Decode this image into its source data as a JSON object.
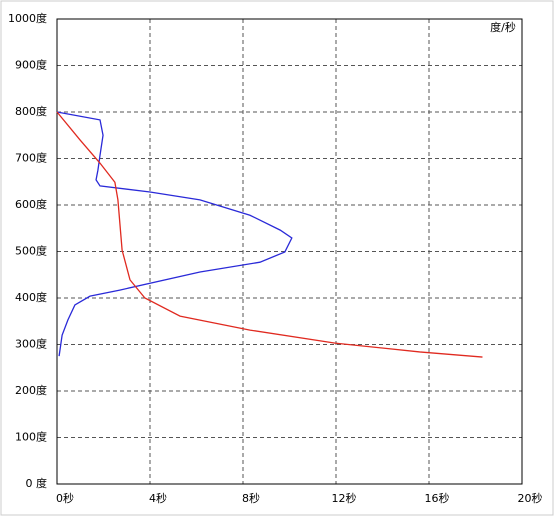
{
  "chart_data": {
    "type": "line",
    "unit_label": "度/秒",
    "xlim": [
      0,
      20
    ],
    "xticks": [
      {
        "value": 0,
        "label": "0秒"
      },
      {
        "value": 4,
        "label": "4秒"
      },
      {
        "value": 8,
        "label": "8秒"
      },
      {
        "value": 12,
        "label": "12秒"
      },
      {
        "value": 16,
        "label": "16秒"
      },
      {
        "value": 20,
        "label": "20秒"
      }
    ],
    "ylim": [
      0,
      1000
    ],
    "yticks": [
      {
        "value": 0,
        "label": "0 度"
      },
      {
        "value": 100,
        "label": "100度"
      },
      {
        "value": 200,
        "label": "200度"
      },
      {
        "value": 300,
        "label": "300度"
      },
      {
        "value": 400,
        "label": "400度"
      },
      {
        "value": 500,
        "label": "500度"
      },
      {
        "value": 600,
        "label": "600度"
      },
      {
        "value": 700,
        "label": "700度"
      },
      {
        "value": 800,
        "label": "800度"
      },
      {
        "value": 900,
        "label": "900度"
      },
      {
        "value": 1000,
        "label": "1000度"
      }
    ],
    "grid": true,
    "series": [
      {
        "color": "#2a2ad8",
        "x": [
          0,
          1.85,
          1.98,
          1.85,
          1.76,
          1.68,
          1.85,
          4.0,
          6.15,
          8.3,
          9.6,
          10.1,
          9.8,
          8.73,
          6.15,
          2.7,
          1.42,
          0.77,
          0.47,
          0.22,
          0.09
        ],
        "values": [
          800,
          783,
          750,
          707,
          675,
          654,
          641,
          628,
          611,
          578,
          546,
          529,
          499,
          477,
          456,
          417,
          404,
          385,
          353,
          320,
          275
        ]
      },
      {
        "color": "#e02a20",
        "x": [
          0,
          0.99,
          1.85,
          2.49,
          2.62,
          2.8,
          3.14,
          3.78,
          5.29,
          8.3,
          11.96,
          15.6,
          18.3
        ],
        "values": [
          800,
          740,
          690,
          649,
          611,
          503,
          439,
          400,
          361,
          331,
          303,
          284,
          273
        ]
      }
    ]
  }
}
